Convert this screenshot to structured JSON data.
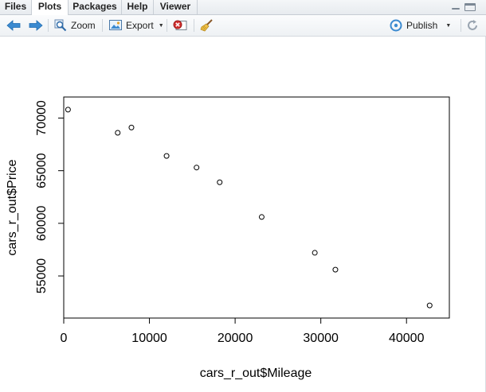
{
  "tabs": [
    {
      "label": "Files"
    },
    {
      "label": "Plots",
      "active": true
    },
    {
      "label": "Packages"
    },
    {
      "label": "Help"
    },
    {
      "label": "Viewer"
    }
  ],
  "toolbar": {
    "zoom_label": "Zoom",
    "export_label": "Export",
    "publish_label": "Publish"
  },
  "icons": [
    "back-arrow-icon",
    "forward-arrow-icon",
    "zoom-magnifier-icon",
    "export-image-icon",
    "remove-plot-icon",
    "broom-icon",
    "publish-icon",
    "refresh-icon"
  ],
  "colors": {
    "arrow": "#3b8ad0",
    "accent_red": "#c62828"
  },
  "chart_data": {
    "type": "scatter",
    "title": "",
    "xlabel": "cars_r_out$Mileage",
    "ylabel": "cars_r_out$Price",
    "xlim": [
      0,
      45000
    ],
    "ylim": [
      51000,
      72000
    ],
    "xticks": [
      0,
      10000,
      20000,
      30000,
      40000
    ],
    "yticks": [
      55000,
      60000,
      65000,
      70000
    ],
    "marker": "open-circle",
    "x": [
      500,
      6300,
      7900,
      12000,
      15500,
      18200,
      23100,
      29300,
      31700,
      42700
    ],
    "y": [
      70800,
      68600,
      69100,
      66400,
      65300,
      63900,
      60600,
      57200,
      55600,
      52200
    ]
  }
}
